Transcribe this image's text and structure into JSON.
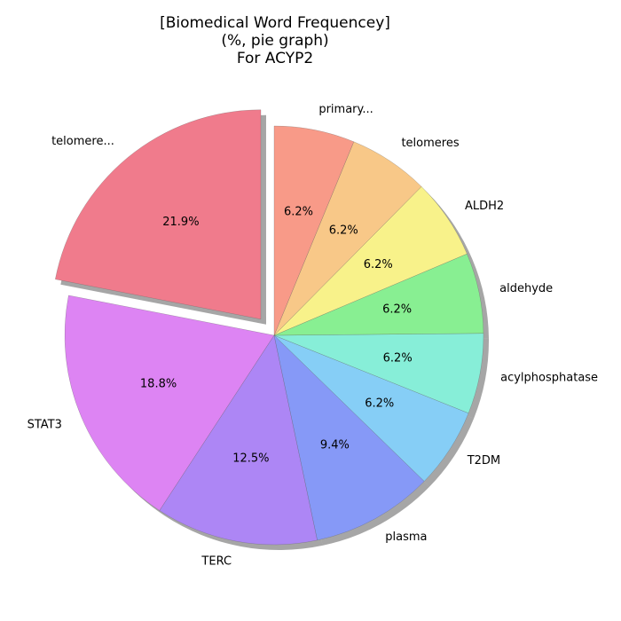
{
  "chart_data": {
    "type": "pie",
    "title_lines": [
      "[Biomedical Word Frequencey]",
      "(%, pie graph)",
      "For ACYP2"
    ],
    "slices": [
      {
        "label": "telomere...",
        "value": 21.9,
        "pct_label": "21.9%",
        "color": "#F07B8C",
        "exploded": true
      },
      {
        "label": "STAT3",
        "value": 18.8,
        "pct_label": "18.8%",
        "color": "#DD84F3",
        "exploded": false
      },
      {
        "label": "TERC",
        "value": 12.5,
        "pct_label": "12.5%",
        "color": "#AD86F5",
        "exploded": false
      },
      {
        "label": "plasma",
        "value": 9.4,
        "pct_label": "9.4%",
        "color": "#8699F7",
        "exploded": false
      },
      {
        "label": "T2DM",
        "value": 6.2,
        "pct_label": "6.2%",
        "color": "#86CEF6",
        "exploded": false
      },
      {
        "label": "acylphosphatase",
        "value": 6.2,
        "pct_label": "6.2%",
        "color": "#87EED8",
        "exploded": false
      },
      {
        "label": "aldehyde",
        "value": 6.2,
        "pct_label": "6.2%",
        "color": "#88EF92",
        "exploded": false
      },
      {
        "label": "ALDH2",
        "value": 6.2,
        "pct_label": "6.2%",
        "color": "#F8F28A",
        "exploded": false
      },
      {
        "label": "telomeres",
        "value": 6.2,
        "pct_label": "6.2%",
        "color": "#F8C888",
        "exploded": false
      },
      {
        "label": "primary...",
        "value": 6.2,
        "pct_label": "6.2%",
        "color": "#F89A88",
        "exploded": false
      }
    ],
    "shadow": true,
    "start_angle_deg": 90,
    "direction": "counterclockwise"
  }
}
